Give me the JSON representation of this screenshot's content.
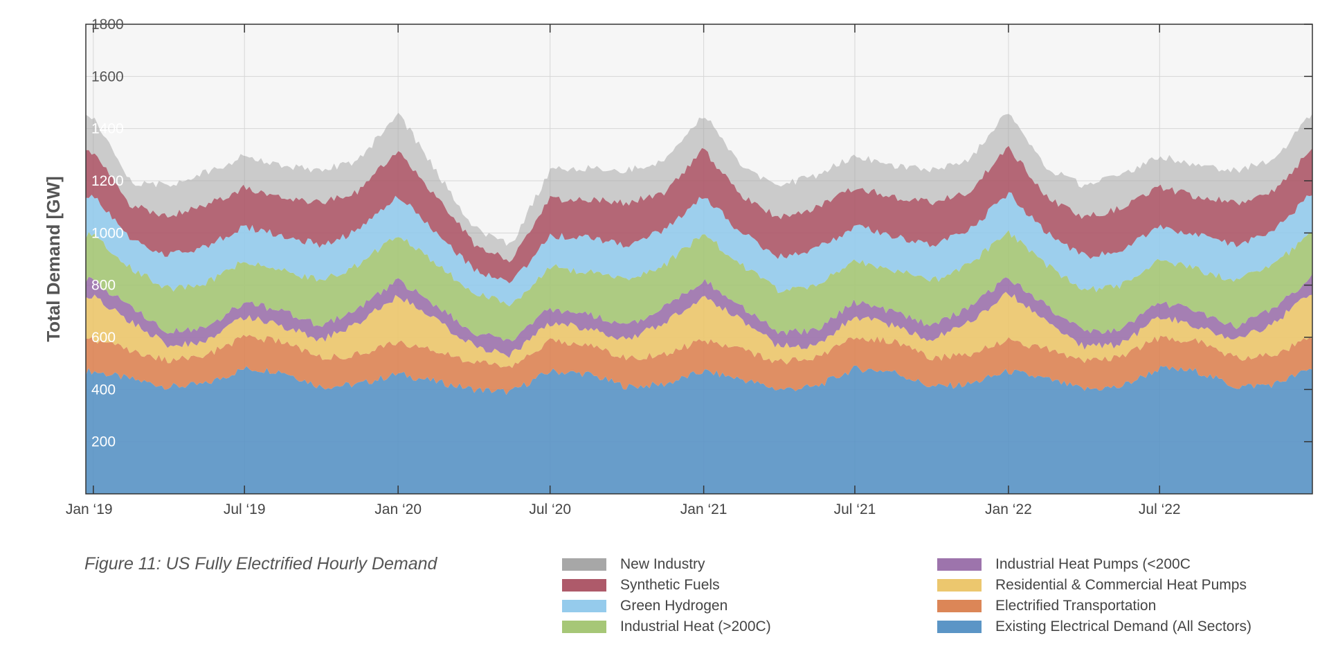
{
  "caption": "Figure 11: US Fully Electrified Hourly Demand",
  "chart_data": {
    "type": "area",
    "stacked": true,
    "ylabel": "Total Demand [GW]",
    "xlabel": "",
    "ylim": [
      0,
      1800
    ],
    "yticks": [
      200,
      400,
      600,
      800,
      1000,
      1200,
      1400,
      1600,
      1800
    ],
    "xlim": [
      "2018-12-23",
      "2022-12-31"
    ],
    "xticks": [
      {
        "date": "2019-01-01",
        "label": "Jan ‘19"
      },
      {
        "date": "2019-07-01",
        "label": "Jul ‘19"
      },
      {
        "date": "2020-01-01",
        "label": "Jan ‘20"
      },
      {
        "date": "2020-07-01",
        "label": "Jul ‘20"
      },
      {
        "date": "2021-01-01",
        "label": "Jan ‘21"
      },
      {
        "date": "2021-07-01",
        "label": "Jul ‘21"
      },
      {
        "date": "2022-01-01",
        "label": "Jan ‘22"
      },
      {
        "date": "2022-07-01",
        "label": "Jul ‘22"
      }
    ],
    "grid": true,
    "legend_position": "bottom-right",
    "x": [
      "2019-01-01",
      "2019-02-15",
      "2019-04-01",
      "2019-05-15",
      "2019-07-01",
      "2019-08-15",
      "2019-10-01",
      "2019-11-15",
      "2020-01-01",
      "2020-02-15",
      "2020-04-01",
      "2020-05-15",
      "2020-07-01",
      "2020-08-15",
      "2020-10-01",
      "2020-11-15",
      "2021-01-01",
      "2021-02-15",
      "2021-04-01",
      "2021-05-15",
      "2021-07-01",
      "2021-08-15",
      "2021-10-01",
      "2021-11-15",
      "2022-01-01",
      "2022-02-15",
      "2022-04-01",
      "2022-05-15",
      "2022-07-01",
      "2022-08-15",
      "2022-10-01",
      "2022-11-15",
      "2022-12-31"
    ],
    "series": [
      {
        "name": "Existing Electrical Demand (All Sectors)",
        "color": "#5b95c6",
        "values": [
          470,
          440,
          410,
          420,
          480,
          470,
          410,
          420,
          460,
          430,
          400,
          390,
          470,
          460,
          410,
          420,
          470,
          440,
          400,
          410,
          480,
          470,
          410,
          420,
          470,
          440,
          400,
          410,
          480,
          470,
          410,
          420,
          480
        ]
      },
      {
        "name": "Electrified Transportation",
        "color": "#dc8657",
        "values": [
          120,
          110,
          100,
          110,
          120,
          115,
          110,
          115,
          120,
          115,
          105,
          100,
          115,
          115,
          110,
          115,
          120,
          115,
          105,
          110,
          120,
          115,
          110,
          115,
          120,
          115,
          105,
          110,
          120,
          115,
          110,
          115,
          120
        ]
      },
      {
        "name": "Residential & Commercial Heat Pumps",
        "color": "#ecc76e",
        "values": [
          170,
          110,
          60,
          50,
          80,
          60,
          70,
          120,
          180,
          120,
          60,
          40,
          70,
          60,
          70,
          120,
          170,
          110,
          60,
          50,
          80,
          60,
          70,
          120,
          180,
          110,
          60,
          50,
          80,
          60,
          70,
          120,
          170
        ]
      },
      {
        "name": "Industrial Heat Pumps (<200C",
        "color": "#9d74ac",
        "values": [
          60,
          55,
          55,
          55,
          55,
          55,
          55,
          58,
          60,
          55,
          55,
          55,
          55,
          55,
          55,
          58,
          60,
          55,
          55,
          55,
          55,
          55,
          55,
          58,
          60,
          55,
          55,
          55,
          55,
          55,
          55,
          58,
          60
        ]
      },
      {
        "name": "Industrial Heat (>200C)",
        "color": "#a6c777",
        "values": [
          170,
          150,
          160,
          170,
          160,
          160,
          170,
          165,
          175,
          160,
          150,
          140,
          160,
          160,
          170,
          165,
          175,
          160,
          160,
          170,
          160,
          160,
          170,
          165,
          175,
          160,
          160,
          170,
          160,
          160,
          170,
          165,
          175
        ]
      },
      {
        "name": "Green Hydrogen",
        "color": "#95cbec",
        "values": [
          150,
          110,
          130,
          140,
          130,
          130,
          140,
          130,
          150,
          120,
          90,
          80,
          120,
          130,
          140,
          130,
          150,
          120,
          130,
          140,
          130,
          130,
          140,
          130,
          150,
          120,
          130,
          140,
          130,
          130,
          140,
          130,
          150
        ]
      },
      {
        "name": "Synthetic Fuels",
        "color": "#ae5a6a",
        "values": [
          170,
          130,
          150,
          160,
          150,
          150,
          160,
          150,
          175,
          140,
          100,
          90,
          140,
          150,
          160,
          150,
          175,
          140,
          150,
          160,
          150,
          150,
          160,
          150,
          175,
          140,
          150,
          160,
          150,
          150,
          160,
          150,
          170
        ]
      },
      {
        "name": "New Industry",
        "color": "#a7a7a7",
        "values": [
          140,
          90,
          120,
          125,
          120,
          120,
          125,
          120,
          140,
          100,
          60,
          60,
          110,
          120,
          125,
          120,
          140,
          110,
          120,
          125,
          120,
          120,
          125,
          120,
          140,
          110,
          120,
          125,
          120,
          120,
          125,
          120,
          140
        ]
      }
    ]
  },
  "legend": {
    "left": [
      {
        "label": "New Industry",
        "color": "#a7a7a7"
      },
      {
        "label": "Synthetic Fuels",
        "color": "#ae5a6a"
      },
      {
        "label": "Green Hydrogen",
        "color": "#95cbec"
      },
      {
        "label": "Industrial Heat (>200C)",
        "color": "#a6c777"
      }
    ],
    "right": [
      {
        "label": "Industrial Heat Pumps (<200C",
        "color": "#9d74ac"
      },
      {
        "label": "Residential & Commercial Heat Pumps",
        "color": "#ecc76e"
      },
      {
        "label": "Electrified Transportation",
        "color": "#dc8657"
      },
      {
        "label": "Existing Electrical Demand (All Sectors)",
        "color": "#5b95c6"
      }
    ]
  }
}
